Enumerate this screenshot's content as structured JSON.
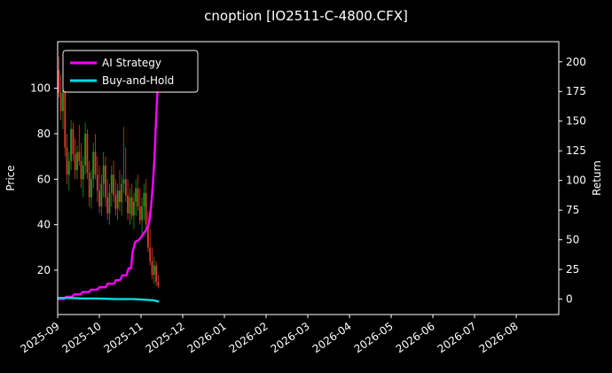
{
  "title": "cnoption [IO2511-C-4800.CFX]",
  "colors": {
    "background": "#000000",
    "foreground": "#ffffff",
    "candle_up": "#17a117",
    "candle_down": "#dd3b2b",
    "ai_strategy": "#ff00ff",
    "buy_and_hold": "#00dde0"
  },
  "legend": {
    "items": [
      {
        "label": "AI Strategy",
        "color_key": "ai_strategy"
      },
      {
        "label": "Buy-and-Hold",
        "color_key": "buy_and_hold"
      }
    ]
  },
  "chart_data": {
    "type": "candlestick+line",
    "title": "cnoption [IO2511-C-4800.CFX]",
    "grid": false,
    "legend_position": "upper-left",
    "x_axis": {
      "unit": "months since 2025-09",
      "min": 0,
      "max": 12.02,
      "tick_positions": [
        0,
        1,
        2,
        3,
        4,
        5,
        6,
        7,
        8,
        9,
        10,
        11
      ],
      "tick_labels": [
        "2025-09",
        "2025-10",
        "2025-11",
        "2025-12",
        "2026-01",
        "2026-02",
        "2026-03",
        "2026-04",
        "2026-05",
        "2026-06",
        "2026-07",
        "2026-08"
      ]
    },
    "left_axis": {
      "label": "Price",
      "min": 0.5,
      "max": 120.5,
      "ticks": [
        20,
        40,
        60,
        80,
        100
      ]
    },
    "right_axis": {
      "label": "Return",
      "min": -13,
      "max": 217,
      "ticks": [
        0,
        25,
        50,
        75,
        100,
        125,
        150,
        175,
        200
      ]
    },
    "candles": {
      "axis": "left",
      "x_start": 0.03,
      "x_step": 0.0486,
      "ohlc_format": [
        "open",
        "high",
        "low",
        "close"
      ],
      "ohlc": [
        [
          108,
          114,
          96,
          98
        ],
        [
          98,
          106,
          86,
          90
        ],
        [
          90,
          102,
          82,
          99
        ],
        [
          99,
          100,
          70,
          74
        ],
        [
          74,
          80,
          58,
          62
        ],
        [
          62,
          72,
          55,
          68
        ],
        [
          68,
          86,
          64,
          82
        ],
        [
          82,
          85,
          68,
          71
        ],
        [
          71,
          78,
          60,
          64
        ],
        [
          64,
          75,
          60,
          72
        ],
        [
          72,
          84,
          66,
          68
        ],
        [
          68,
          76,
          56,
          60
        ],
        [
          60,
          70,
          52,
          66
        ],
        [
          66,
          85,
          62,
          80
        ],
        [
          80,
          82,
          60,
          63
        ],
        [
          63,
          68,
          48,
          52
        ],
        [
          52,
          64,
          47,
          60
        ],
        [
          60,
          76,
          56,
          72
        ],
        [
          72,
          80,
          60,
          62
        ],
        [
          62,
          70,
          50,
          55
        ],
        [
          55,
          66,
          45,
          48
        ],
        [
          48,
          62,
          44,
          58
        ],
        [
          58,
          72,
          52,
          66
        ],
        [
          66,
          70,
          48,
          52
        ],
        [
          52,
          60,
          42,
          45
        ],
        [
          45,
          58,
          40,
          54
        ],
        [
          54,
          66,
          48,
          62
        ],
        [
          62,
          68,
          50,
          53
        ],
        [
          53,
          60,
          44,
          47
        ],
        [
          47,
          58,
          42,
          55
        ],
        [
          55,
          64,
          46,
          50
        ],
        [
          50,
          62,
          44,
          58
        ],
        [
          58,
          83,
          54,
          60
        ],
        [
          60,
          74,
          50,
          53
        ],
        [
          53,
          60,
          42,
          45
        ],
        [
          45,
          56,
          40,
          52
        ],
        [
          52,
          58,
          42,
          44
        ],
        [
          44,
          54,
          38,
          50
        ],
        [
          50,
          60,
          44,
          56
        ],
        [
          56,
          62,
          46,
          48
        ],
        [
          48,
          56,
          40,
          42
        ],
        [
          42,
          52,
          36,
          48
        ],
        [
          48,
          58,
          42,
          54
        ],
        [
          54,
          60,
          38,
          40
        ],
        [
          40,
          46,
          28,
          30
        ],
        [
          30,
          38,
          22,
          24
        ],
        [
          24,
          30,
          16,
          18
        ],
        [
          18,
          26,
          14,
          22
        ],
        [
          22,
          24,
          13,
          15
        ],
        [
          15,
          18,
          12,
          13
        ]
      ]
    },
    "series": [
      {
        "name": "AI Strategy",
        "data_name": "ai-strategy-line",
        "axis": "right",
        "color_key": "ai_strategy",
        "x": [
          0.03,
          0.15,
          0.2,
          0.35,
          0.4,
          0.55,
          0.6,
          0.75,
          0.8,
          0.95,
          1.0,
          1.15,
          1.2,
          1.35,
          1.4,
          1.5,
          1.55,
          1.65,
          1.7,
          1.76,
          1.8,
          1.86,
          1.95,
          2.0,
          2.05,
          2.1,
          2.15,
          2.2,
          2.24,
          2.28,
          2.32,
          2.36,
          2.39,
          2.41
        ],
        "y": [
          0,
          0,
          2,
          2,
          4,
          4,
          6,
          6,
          8,
          8,
          10,
          10,
          13,
          13,
          16,
          16,
          20,
          20,
          26,
          26,
          40,
          48,
          50,
          52,
          55,
          57,
          60,
          65,
          78,
          95,
          118,
          150,
          172,
          182
        ]
      },
      {
        "name": "Buy-and-Hold",
        "data_name": "buy-and-hold-line",
        "axis": "right",
        "color_key": "buy_and_hold",
        "x": [
          0.03,
          0.3,
          0.6,
          1.0,
          1.4,
          1.8,
          2.1,
          2.3,
          2.41
        ],
        "y": [
          1,
          1,
          0.5,
          0.5,
          0,
          0,
          -0.5,
          -1,
          -2
        ]
      }
    ]
  }
}
